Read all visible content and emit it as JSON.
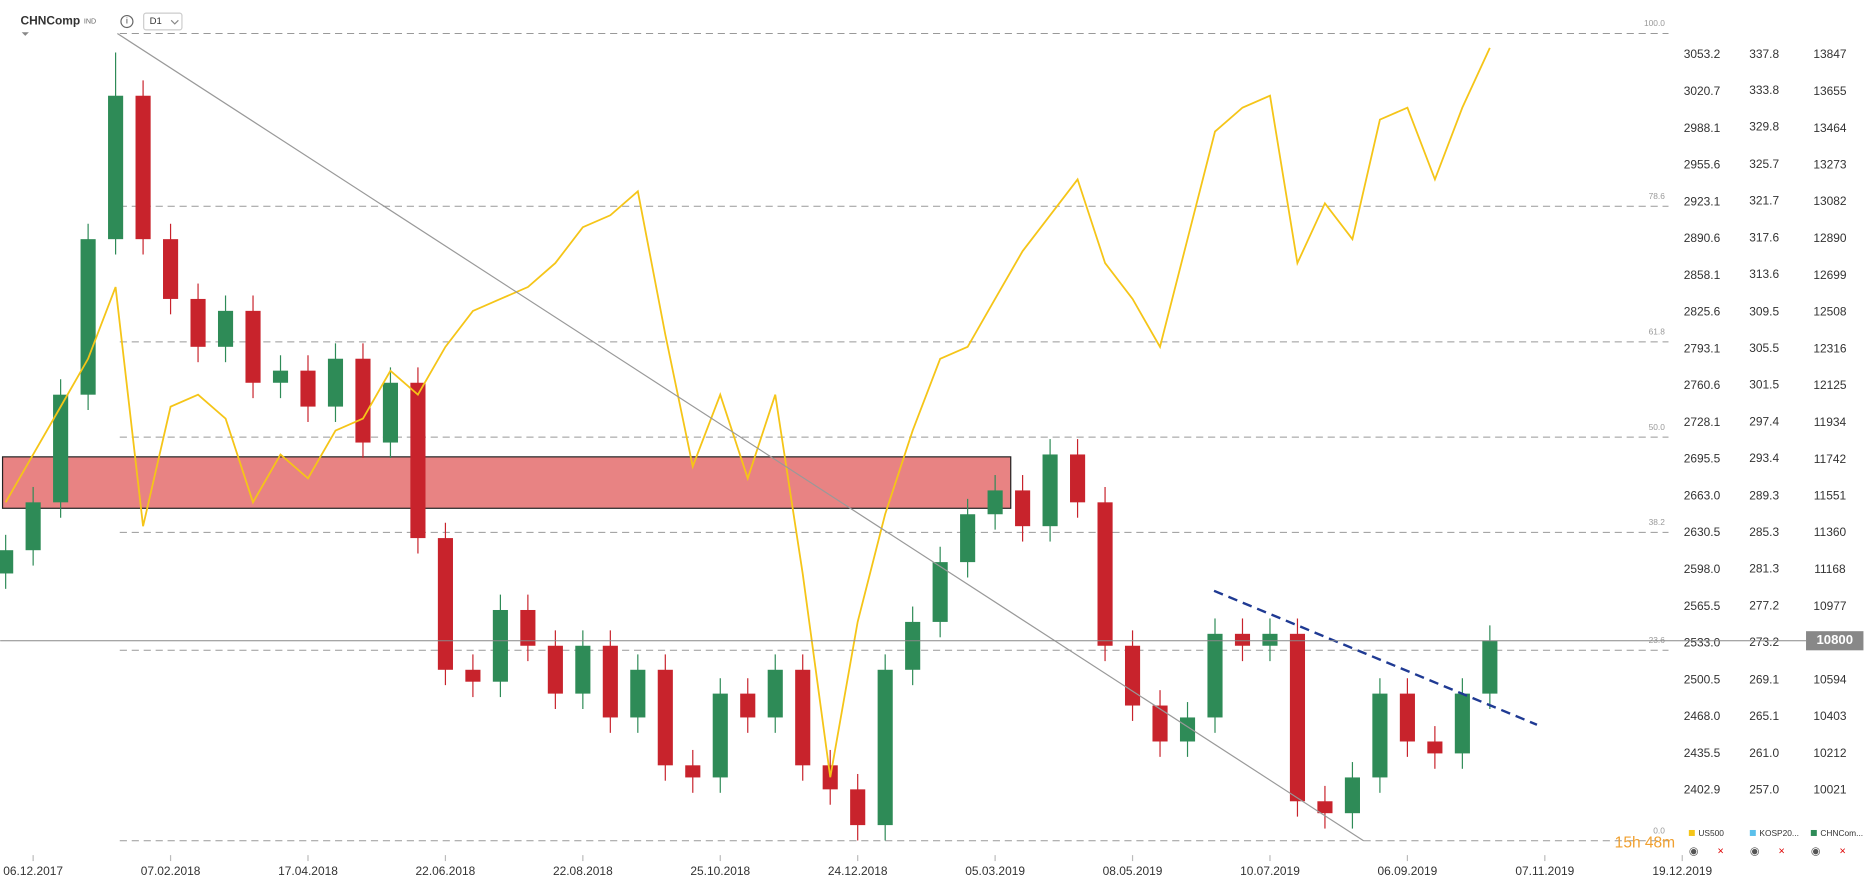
{
  "header": {
    "symbol": "CHNComp",
    "kind": "IND",
    "interval": "D1"
  },
  "chart_data": {
    "type": "candlestick",
    "xlim": [
      -0.2,
      60.5
    ],
    "xticks": [
      {
        "value": 1,
        "label": "06.12.2017"
      },
      {
        "value": 6,
        "label": "07.02.2018"
      },
      {
        "value": 11,
        "label": "17.04.2018"
      },
      {
        "value": 16,
        "label": "22.06.2018"
      },
      {
        "value": 21,
        "label": "22.08.2018"
      },
      {
        "value": 26,
        "label": "25.10.2018"
      },
      {
        "value": 31,
        "label": "24.12.2018"
      },
      {
        "value": 36,
        "label": "05.03.2019"
      },
      {
        "value": 41,
        "label": "08.05.2019"
      },
      {
        "value": 46,
        "label": "10.07.2019"
      },
      {
        "value": 51,
        "label": "06.09.2019"
      },
      {
        "value": 56,
        "label": "07.11.2019"
      },
      {
        "value": 61,
        "label": "19.12.2019"
      }
    ],
    "ylim": [
      2345.8,
      3101.8
    ],
    "yticks": [
      3053.2,
      3020.7,
      2988.1,
      2955.6,
      2923.1,
      2890.6,
      2858.1,
      2825.6,
      2793.1,
      2760.6,
      2728.1,
      2695.5,
      {
        "value": 2663,
        "label": "2663.0"
      },
      2630.5,
      {
        "value": 2598,
        "label": "2598.0"
      },
      2565.5,
      {
        "value": 2533,
        "label": "2533.0"
      },
      2500.5,
      {
        "value": 2468,
        "label": "2468.0"
      },
      2435.5,
      2402.9
    ],
    "y2lim": [
      249.9,
      343.8
    ],
    "y2ticks": [
      337.8,
      333.8,
      329.8,
      325.7,
      321.7,
      317.6,
      313.6,
      309.5,
      305.5,
      301.5,
      297.4,
      293.4,
      289.3,
      285.3,
      281.3,
      277.2,
      273.2,
      269.1,
      265.1,
      {
        "value": 261,
        "label": "261.0"
      },
      {
        "value": 257,
        "label": "257.0"
      }
    ],
    "y3lim": [
      9685,
      14133
    ],
    "y3ticks": [
      13847,
      13655,
      13464,
      13273,
      13082,
      12890,
      12699,
      12508,
      12316,
      12125,
      11934,
      11742,
      11551,
      11360,
      11168,
      10977,
      10594,
      10403,
      10212,
      10021
    ],
    "current_price": 10800,
    "fib": {
      "high": 3072.2,
      "low": 2358.5,
      "levels": [
        {
          "value": 100,
          "label": "100.0"
        },
        78.6,
        61.8,
        {
          "value": 50,
          "label": "50.0"
        },
        38.2,
        23.6,
        {
          "value": 0,
          "label": "0.0"
        }
      ]
    },
    "series": [
      {
        "axis": "y3",
        "color_up": "#2e8b57",
        "color_down": "#c8232c",
        "open": [
          11150,
          11271,
          11520,
          12080,
          12889,
          13635,
          12889,
          12578,
          12329,
          12516,
          12142,
          12205,
          12018,
          12267,
          11831,
          12142,
          11334,
          10649,
          10587,
          10960,
          10774,
          10525,
          10774,
          10401,
          10649,
          10152,
          10089,
          10525,
          10401,
          10649,
          10152,
          10027,
          9841,
          10649,
          10898,
          11209,
          11458,
          11582,
          11396,
          11769,
          11520,
          10774,
          10463,
          10276,
          10401,
          10836,
          10774,
          10836,
          9965,
          9903,
          10089,
          10525,
          10276,
          10214,
          10525
        ],
        "high": [
          11351,
          11600,
          12160,
          12969,
          13860,
          13715,
          12969,
          12658,
          12596,
          12596,
          12285,
          12285,
          12347,
          12347,
          12222,
          12222,
          11414,
          10729,
          11040,
          11040,
          10854,
          10854,
          10854,
          10729,
          10729,
          10232,
          10605,
          10605,
          10729,
          10729,
          10232,
          10107,
          10729,
          10978,
          11289,
          11538,
          11662,
          11662,
          11849,
          11849,
          11600,
          10854,
          10543,
          10481,
          10916,
          10916,
          10916,
          10916,
          10045,
          10169,
          10605,
          10605,
          10356,
          10605,
          10880
        ],
        "low": [
          11070,
          11191,
          11440,
          12000,
          12809,
          12809,
          12498,
          12249,
          12249,
          12062,
          12062,
          11938,
          11938,
          11751,
          11751,
          11254,
          10569,
          10507,
          10507,
          10694,
          10445,
          10445,
          10321,
          10321,
          10072,
          10009,
          10009,
          10321,
          10321,
          10072,
          9947,
          9761,
          9761,
          10569,
          10818,
          11129,
          11378,
          11316,
          11316,
          11440,
          10694,
          10383,
          10196,
          10196,
          10321,
          10694,
          10694,
          9885,
          9823,
          9823,
          10009,
          10196,
          10134,
          10134,
          10445
        ],
        "close": [
          11271,
          11520,
          12080,
          12889,
          13635,
          12889,
          12578,
          12329,
          12516,
          12142,
          12205,
          12018,
          12267,
          11831,
          12142,
          11334,
          10649,
          10587,
          10960,
          10774,
          10525,
          10774,
          10401,
          10649,
          10152,
          10089,
          10525,
          10401,
          10649,
          10152,
          10027,
          9841,
          10649,
          10898,
          11209,
          11458,
          11582,
          11396,
          11769,
          11520,
          10774,
          10463,
          10276,
          10401,
          10836,
          10774,
          10836,
          9965,
          9903,
          10089,
          10525,
          10276,
          10214,
          10525,
          10800
        ]
      },
      {
        "axis": "y",
        "color": "#f5c518",
        "values": [
          2657.7,
          2700.0,
          2742.3,
          2784.6,
          2848.0,
          2636.6,
          2742.3,
          2752.9,
          2731.7,
          2657.7,
          2700.0,
          2678.9,
          2721.2,
          2731.7,
          2774.0,
          2752.9,
          2795.2,
          2826.9,
          2837.5,
          2848.0,
          2869.2,
          2900.9,
          2911.5,
          2932.6,
          2805.8,
          2689.4,
          2752.9,
          2678.9,
          2752.9,
          2594.3,
          2414.6,
          2552.0,
          2647.2,
          2721.2,
          2784.6,
          2795.2,
          2837.5,
          2879.8,
          2911.5,
          2943.2,
          2869.2,
          2837.5,
          2795.2,
          2890.3,
          2985.5,
          3006.6,
          3017.2,
          2869.2,
          2922.0,
          2890.3,
          2996.1,
          3006.6,
          2943.2,
          3006.6,
          3059.5
        ]
      }
    ],
    "legend": [
      {
        "name": "US500",
        "color": "#f5c518"
      },
      {
        "name": "KOSP20...",
        "color": "#5bc0eb"
      },
      {
        "name": "CHNCom...",
        "color": "#2e8b57"
      }
    ],
    "timer": "15h 48m"
  }
}
